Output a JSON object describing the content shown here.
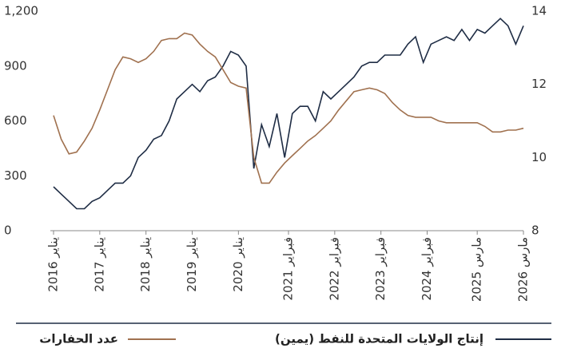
{
  "chart_data": {
    "type": "line",
    "x": [
      "2016-01",
      "2016-03",
      "2016-05",
      "2016-07",
      "2016-09",
      "2016-11",
      "2017-01",
      "2017-03",
      "2017-05",
      "2017-07",
      "2017-09",
      "2017-11",
      "2018-01",
      "2018-03",
      "2018-05",
      "2018-07",
      "2018-09",
      "2018-11",
      "2019-01",
      "2019-03",
      "2019-05",
      "2019-07",
      "2019-09",
      "2019-11",
      "2020-01",
      "2020-03",
      "2020-05",
      "2020-07",
      "2020-09",
      "2020-11",
      "2021-01",
      "2021-03",
      "2021-05",
      "2021-07",
      "2021-09",
      "2021-11",
      "2022-01",
      "2022-03",
      "2022-05",
      "2022-07",
      "2022-09",
      "2022-11",
      "2023-01",
      "2023-03",
      "2023-05",
      "2023-07",
      "2023-09",
      "2023-11",
      "2024-01",
      "2024-03",
      "2024-05",
      "2024-07",
      "2024-09",
      "2024-11",
      "2025-01",
      "2025-03",
      "2025-05",
      "2025-07",
      "2025-09",
      "2025-11",
      "2026-01",
      "2026-03"
    ],
    "xlim": [
      "2016-01",
      "2026-03"
    ],
    "xticks": [
      {
        "value": "2016-01",
        "label": "يناير 2016"
      },
      {
        "value": "2017-01",
        "label": "يناير 2017"
      },
      {
        "value": "2018-01",
        "label": "يناير 2018"
      },
      {
        "value": "2019-01",
        "label": "يناير 2019"
      },
      {
        "value": "2020-01",
        "label": "يناير 2020"
      },
      {
        "value": "2021-02",
        "label": "فبراير 2021"
      },
      {
        "value": "2022-02",
        "label": "فبراير 2022"
      },
      {
        "value": "2023-02",
        "label": "فبراير 2023"
      },
      {
        "value": "2024-02",
        "label": "فبراير 2024"
      },
      {
        "value": "2025-03",
        "label": "مارس 2025"
      },
      {
        "value": "2026-03",
        "label": "مارس 2026"
      }
    ],
    "ylim": [
      0,
      1200
    ],
    "yticks": [
      0,
      300,
      600,
      900,
      {
        "value": 1200,
        "label": "1,200"
      }
    ],
    "y2lim": [
      8,
      14
    ],
    "y2ticks": [
      8,
      10,
      12,
      14
    ],
    "series": [
      {
        "name": "إنتاج الولايات المتحدة للنفط (يمين)",
        "color": "#1f2d45",
        "axis": "y2",
        "values": [
          9.2,
          9.0,
          8.8,
          8.6,
          8.6,
          8.8,
          8.9,
          9.1,
          9.3,
          9.3,
          9.5,
          10.0,
          10.2,
          10.5,
          10.6,
          11.0,
          11.6,
          11.8,
          12.0,
          11.8,
          12.1,
          12.2,
          12.5,
          12.9,
          12.8,
          12.5,
          9.7,
          10.9,
          10.3,
          11.2,
          10.0,
          11.2,
          11.4,
          11.4,
          11.0,
          11.8,
          11.6,
          11.8,
          12.0,
          12.2,
          12.5,
          12.6,
          12.6,
          12.8,
          12.8,
          12.8,
          13.1,
          13.3,
          12.6,
          13.1,
          13.2,
          13.3,
          13.2,
          13.5,
          13.2,
          13.5,
          13.4,
          13.6,
          13.8,
          13.6,
          13.1,
          13.6
        ]
      },
      {
        "name": "عدد الحفارات",
        "color": "#a0714f",
        "values": [
          630,
          500,
          420,
          430,
          490,
          560,
          660,
          770,
          880,
          950,
          940,
          920,
          940,
          980,
          1040,
          1050,
          1050,
          1080,
          1070,
          1020,
          980,
          950,
          880,
          810,
          790,
          780,
          400,
          260,
          260,
          320,
          370,
          410,
          450,
          490,
          520,
          560,
          600,
          660,
          710,
          760,
          770,
          780,
          770,
          750,
          700,
          660,
          630,
          620,
          620,
          620,
          600,
          590,
          590,
          590,
          590,
          590,
          570,
          540,
          540,
          550,
          550,
          560
        ]
      }
    ]
  }
}
